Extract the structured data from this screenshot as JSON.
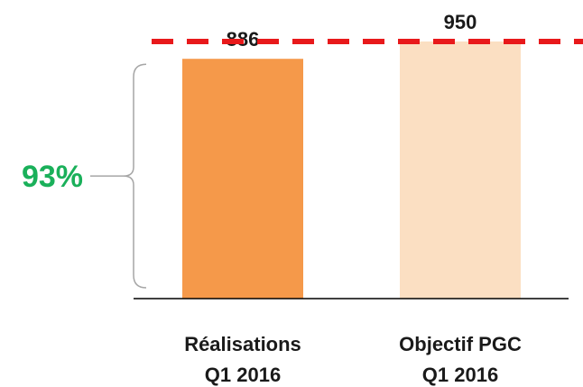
{
  "chart_data": {
    "type": "bar",
    "categories": [
      [
        "Réalisations",
        "Q1 2016"
      ],
      [
        "Objectif PGC",
        "Q1 2016"
      ]
    ],
    "values": [
      886,
      950
    ],
    "data_labels": [
      "886",
      "950"
    ],
    "target": {
      "value": 950,
      "color": "#e8191b",
      "style": "dashed"
    },
    "annotation": {
      "text": "93%",
      "color": "#1ab05a",
      "span": [
        0,
        886
      ]
    },
    "bar_colors": [
      "#f5994a",
      "#fbdfc2"
    ],
    "ylim": [
      0,
      950
    ],
    "grid": false,
    "legend": "none"
  }
}
